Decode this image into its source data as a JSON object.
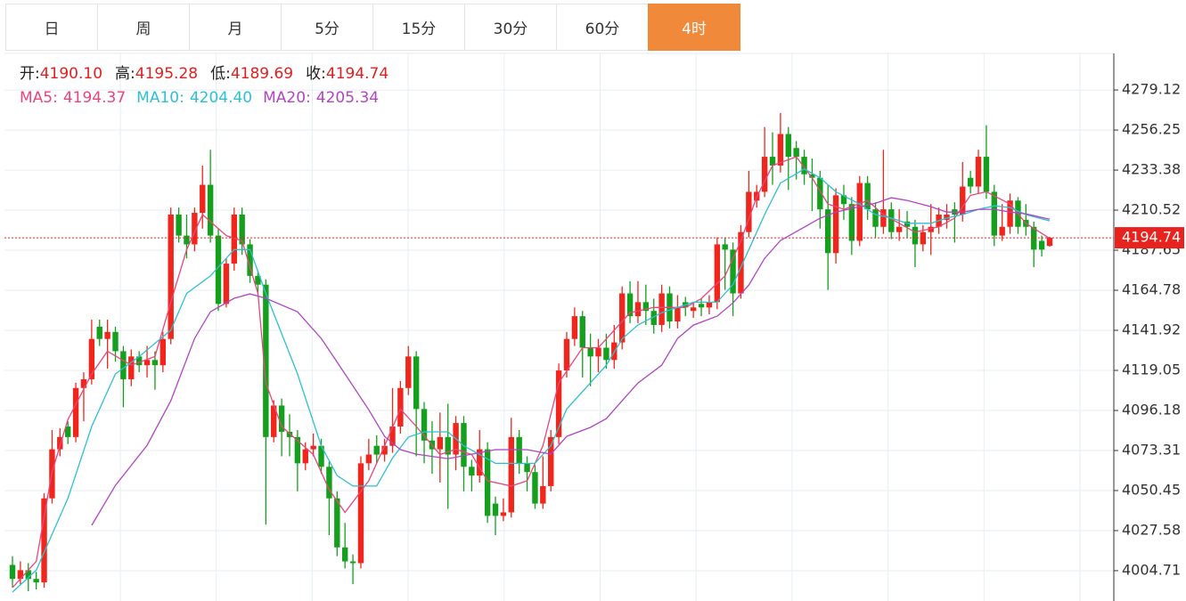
{
  "tabs": {
    "items": [
      "日",
      "周",
      "月",
      "5分",
      "15分",
      "30分",
      "60分",
      "4时"
    ],
    "active": 7
  },
  "chart_data": {
    "type": "candlestick",
    "info": [
      {
        "label": "开:",
        "value": "4190.10"
      },
      {
        "label": "高:",
        "value": "4195.28"
      },
      {
        "label": "低:",
        "value": "4189.69"
      },
      {
        "label": "收:",
        "value": "4194.74"
      }
    ],
    "open": [
      4008,
      4000,
      4005,
      4000,
      3998,
      4046,
      4074,
      4087,
      4081,
      4109,
      4114,
      4144,
      4137,
      4141,
      4130,
      4114,
      4127,
      4122,
      4125,
      4122,
      4137,
      4208,
      4196,
      4191,
      4209,
      4225,
      4196,
      4157,
      4180,
      4208,
      4191,
      4173,
      4168,
      4081,
      4099,
      4084,
      4081,
      4066,
      4074,
      4076,
      4064,
      4046,
      4018,
      4010,
      4009,
      4066,
      4076,
      4071,
      4076,
      4087,
      4109,
      4127,
      4097,
      4079,
      4074,
      4081,
      4071,
      4089,
      4064,
      4059,
      4074,
      4043,
      4036,
      4038,
      4081,
      4066,
      4061,
      4043,
      4053,
      4081,
      4119,
      4137,
      4150,
      4132,
      4127,
      4132,
      4125,
      4135,
      4163,
      4150,
      4158,
      4153,
      4145,
      4163,
      4147,
      4158,
      4153,
      4157,
      4155,
      4158,
      4191,
      4188,
      4163,
      4198,
      4216,
      4221,
      4241,
      4236,
      4254,
      4246,
      4241,
      4231,
      4229,
      4211,
      4186,
      4219,
      4214,
      4193,
      4226,
      4211,
      4201,
      4211,
      4198,
      4204,
      4201,
      4191,
      4198,
      4201,
      4205,
      4211,
      4208,
      4229,
      4224,
      4241,
      4221,
      4196,
      4201,
      4216,
      4205,
      4201,
      4193,
      4190.1
    ],
    "high": [
      4013,
      4010,
      4009,
      4004,
      4049,
      4085,
      4086,
      4090,
      4112,
      4118,
      4148,
      4148,
      4148,
      4144,
      4133,
      4131,
      4130,
      4133,
      4130,
      4141,
      4212,
      4212,
      4208,
      4212,
      4236,
      4245,
      4200,
      4183,
      4212,
      4212,
      4194,
      4176,
      4171,
      4102,
      4103,
      4094,
      4085,
      4078,
      4083,
      4080,
      4067,
      4050,
      4032,
      4014,
      4070,
      4080,
      4082,
      4080,
      4109,
      4113,
      4133,
      4130,
      4101,
      4090,
      4095,
      4100,
      4093,
      4093,
      4068,
      4085,
      4078,
      4047,
      4046,
      4092,
      4085,
      4070,
      4065,
      4070,
      4085,
      4123,
      4141,
      4155,
      4153,
      4140,
      4137,
      4140,
      4145,
      4167,
      4170,
      4170,
      4168,
      4160,
      4168,
      4167,
      4162,
      4161,
      4158,
      4160,
      4162,
      4195,
      4195,
      4192,
      4202,
      4233,
      4225,
      4258,
      4255,
      4266,
      4258,
      4250,
      4245,
      4240,
      4233,
      4225,
      4223,
      4225,
      4218,
      4230,
      4230,
      4215,
      4245,
      4215,
      4211,
      4210,
      4205,
      4202,
      4214,
      4212,
      4214,
      4215,
      4238,
      4233,
      4245,
      4259,
      4225,
      4214,
      4220,
      4218,
      4214,
      4204,
      4196,
      4195.28
    ],
    "low": [
      3995,
      3997,
      3993,
      3994,
      3995,
      4043,
      4070,
      4077,
      4078,
      4090,
      4111,
      4133,
      4120,
      4124,
      4098,
      4110,
      4118,
      4115,
      4108,
      4118,
      4134,
      4192,
      4183,
      4187,
      4200,
      4192,
      4153,
      4155,
      4176,
      4185,
      4169,
      4163,
      4031,
      4078,
      4070,
      4070,
      4050,
      4062,
      4070,
      4060,
      4025,
      4013,
      4006,
      3997,
      4006,
      4062,
      4066,
      4067,
      4072,
      4083,
      4105,
      4070,
      4066,
      4060,
      4055,
      4040,
      4062,
      4050,
      4050,
      4055,
      4032,
      4025,
      4033,
      4035,
      4060,
      4050,
      4040,
      4040,
      4050,
      4077,
      4115,
      4133,
      4115,
      4110,
      4118,
      4120,
      4120,
      4131,
      4146,
      4146,
      4145,
      4140,
      4141,
      4143,
      4143,
      4150,
      4149,
      4150,
      4151,
      4154,
      4165,
      4150,
      4160,
      4195,
      4212,
      4218,
      4225,
      4232,
      4222,
      4228,
      4225,
      4210,
      4200,
      4165,
      4180,
      4205,
      4185,
      4190,
      4205,
      4195,
      4197,
      4194,
      4193,
      4195,
      4178,
      4187,
      4185,
      4197,
      4200,
      4192,
      4204,
      4220,
      4220,
      4217,
      4190,
      4193,
      4197,
      4197,
      4196,
      4178,
      4184,
      4189.69
    ],
    "close": [
      4000,
      4005,
      4000,
      3998,
      4046,
      4074,
      4081,
      4081,
      4109,
      4114,
      4137,
      4137,
      4141,
      4130,
      4114,
      4127,
      4122,
      4125,
      4122,
      4137,
      4208,
      4196,
      4191,
      4209,
      4225,
      4196,
      4157,
      4180,
      4208,
      4191,
      4173,
      4168,
      4081,
      4099,
      4084,
      4081,
      4066,
      4074,
      4076,
      4064,
      4046,
      4018,
      4010,
      4009,
      4066,
      4071,
      4071,
      4076,
      4087,
      4109,
      4127,
      4097,
      4079,
      4074,
      4081,
      4071,
      4089,
      4064,
      4059,
      4074,
      4036,
      4036,
      4038,
      4081,
      4066,
      4061,
      4043,
      4053,
      4081,
      4119,
      4137,
      4150,
      4132,
      4127,
      4132,
      4125,
      4135,
      4163,
      4150,
      4158,
      4153,
      4145,
      4163,
      4147,
      4155,
      4155,
      4155,
      4155,
      4158,
      4191,
      4188,
      4163,
      4198,
      4221,
      4221,
      4241,
      4236,
      4254,
      4241,
      4241,
      4231,
      4229,
      4211,
      4186,
      4219,
      4214,
      4193,
      4226,
      4211,
      4201,
      4211,
      4198,
      4201,
      4201,
      4191,
      4198,
      4201,
      4208,
      4208,
      4208,
      4224,
      4224,
      4241,
      4221,
      4196,
      4201,
      4216,
      4201,
      4201,
      4188,
      4188,
      4194.74
    ],
    "up_color": "#f0261c",
    "down_color": "#14a01c",
    "series": [
      {
        "name": "MA5:",
        "value_label": "4194.37",
        "color": "#e8457c",
        "x": [
          0,
          3,
          5,
          7,
          10,
          12,
          15,
          18,
          20,
          22,
          24,
          27,
          29,
          31,
          32,
          34,
          38,
          40,
          42,
          45,
          47,
          49,
          51,
          54,
          56,
          58,
          60,
          63,
          65,
          67,
          69,
          72,
          74,
          76,
          78,
          81,
          83,
          85,
          87,
          90,
          92,
          94,
          96,
          99,
          101,
          103,
          105,
          108,
          110,
          112,
          114,
          117,
          119,
          121,
          123,
          126,
          128,
          131
        ],
        "values": [
          3995,
          4010,
          4061,
          4091,
          4117,
          4130,
          4122,
          4127,
          4158,
          4188,
          4208,
          4196,
          4193,
          4163,
          4112,
          4087,
          4071,
          4051,
          4038,
          4056,
          4076,
          4097,
          4087,
          4071,
          4074,
          4071,
          4056,
          4053,
          4056,
          4076,
          4112,
          4132,
          4132,
          4142,
          4152,
          4155,
          4155,
          4155,
          4160,
          4173,
          4193,
          4218,
          4236,
          4241,
          4229,
          4214,
          4211,
          4216,
          4208,
          4203,
          4198,
          4201,
          4206,
          4219,
          4221,
          4214,
          4203,
          4194.37
        ]
      },
      {
        "name": "MA10:",
        "value_label": "4204.40",
        "color": "#2ebfd2",
        "x": [
          0,
          3,
          7,
          10,
          13,
          16,
          20,
          22,
          25,
          28,
          30,
          32,
          36,
          39,
          41,
          43,
          46,
          48,
          50,
          52,
          55,
          57,
          59,
          61,
          64,
          66,
          68,
          70,
          73,
          75,
          77,
          79,
          82,
          84,
          86,
          89,
          91,
          93,
          95,
          97,
          100,
          102,
          104,
          107,
          109,
          111,
          113,
          116,
          118,
          120,
          122,
          124,
          126,
          128,
          131
        ],
        "values": [
          3992.5,
          4005,
          4046,
          4087,
          4117,
          4127,
          4142,
          4163,
          4173,
          4188,
          4188,
          4163,
          4117,
          4076,
          4059,
          4053,
          4053,
          4069,
          4081,
          4084,
          4084,
          4076,
          4071,
          4066,
          4066,
          4066,
          4076,
          4097,
          4112,
          4122,
          4137,
          4145,
          4152,
          4155,
          4158,
          4158,
          4168,
          4188,
          4208,
          4226,
          4234,
          4229,
          4221,
          4214,
          4208,
          4206,
          4203,
          4203,
          4206,
          4208,
          4211,
          4213,
          4212,
          4208,
          4204.4
        ]
      },
      {
        "name": "MA20:",
        "value_label": "4205.34",
        "color": "#b045c2",
        "x": [
          10,
          13,
          17,
          20,
          23,
          25,
          28,
          30,
          32,
          36,
          39,
          42,
          45,
          47,
          49,
          51,
          55,
          58,
          61,
          65,
          68,
          70,
          73,
          75,
          77,
          79,
          82,
          84,
          86,
          89,
          91,
          93,
          95,
          97,
          100,
          102,
          104,
          107,
          109,
          111,
          113,
          116,
          118,
          120,
          122,
          124,
          126,
          128,
          131
        ],
        "values": [
          4030.6,
          4053.4,
          4076.3,
          4101.7,
          4137.3,
          4152.5,
          4160.2,
          4162.7,
          4160.2,
          4152.5,
          4137.3,
          4117,
          4096.6,
          4081.4,
          4073.8,
          4071.2,
          4068.7,
          4071.2,
          4073.8,
          4073.8,
          4071.2,
          4081.4,
          4086.5,
          4091.5,
          4101.7,
          4111.9,
          4122,
          4137.3,
          4144.9,
          4150,
          4157.6,
          4167.8,
          4183,
          4193.2,
          4200.8,
          4205.9,
          4209.4,
          4212.5,
          4214.5,
          4217.6,
          4216.1,
          4212.5,
          4209.4,
          4209.4,
          4211,
          4211,
          4209.4,
          4208.4,
          4205.34
        ]
      }
    ],
    "ylim": [
      3987.4,
      4300
    ],
    "yticks": [
      4004.71,
      4027.58,
      4050.45,
      4073.31,
      4096.18,
      4119.05,
      4141.92,
      4164.78,
      4187.65,
      4210.52,
      4233.38,
      4256.25,
      4279.12
    ],
    "grid": true,
    "last_price_line": true,
    "last_price_color": "#e8221c"
  }
}
